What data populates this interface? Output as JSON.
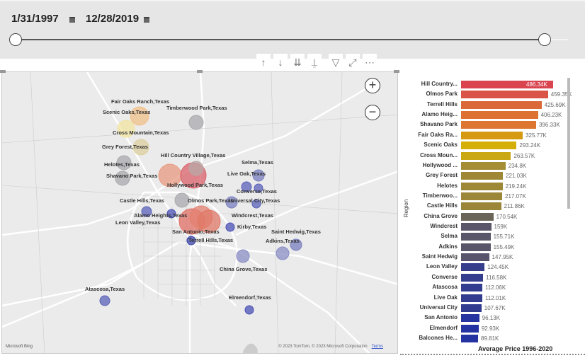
{
  "slicer": {
    "start_date": "1/31/1997",
    "end_date": "12/28/2019",
    "range_fraction": [
      0,
      1
    ]
  },
  "toolbar": {
    "icons": [
      "arrow-up-icon",
      "arrow-down-icon",
      "double-arrow-down-icon",
      "expand-hierarchy-icon",
      "filter-icon",
      "focus-mode-icon",
      "more-options-icon"
    ],
    "more": "⋯"
  },
  "map": {
    "labels": [
      "Fair Oaks Ranch,Texas",
      "Scenic Oaks,Texas",
      "Cross Mountain,Texas",
      "Grey Forest,Texas",
      "Timberwood Park,Texas",
      "Hill Country Village,Texas",
      "Helotes,Texas",
      "Shavano Park,Texas",
      "Hollywood Park,Texas",
      "Selma,Texas",
      "Live Oak,Texas",
      "Converse,Texas",
      "Universal City,Texas",
      "Castle Hills,Texas",
      "Olmos Park,Texas",
      "Alamo Heights,Texas",
      "Windcrest,Texas",
      "Leon Valley,Texas",
      "San Antonio,Texas",
      "Kirby,Texas",
      "Saint Hedwig,Texas",
      "Adkins,Texas",
      "Terrell Hills,Texas",
      "China Grove,Texas",
      "Atascosa,Texas",
      "Elmendorf,Texas"
    ],
    "zoom_in": "+",
    "zoom_out": "−",
    "attribution": "© 2023 TomTom, © 2023 Microsoft Corporation",
    "terms": "Terms",
    "logo": "Microsoft Bing"
  },
  "chart_data": {
    "type": "bar",
    "orientation": "horizontal",
    "ylabel": "Region",
    "xlabel": "Average Price 1996-2020",
    "categories": [
      "Hill Country...",
      "Olmos Park",
      "Terrell Hills",
      "Alamo Heig...",
      "Shavano Park",
      "Fair Oaks Ra...",
      "Scenic Oaks",
      "Cross Moun...",
      "Hollywood ...",
      "Grey Forest",
      "Helotes",
      "Timberwoo...",
      "Castle Hills",
      "China Grove",
      "Windcrest",
      "Selma",
      "Adkins",
      "Saint Hedwig",
      "Leon Valley",
      "Converse",
      "Atascosa",
      "Live Oak",
      "Universal City",
      "San Antonio",
      "Elmendorf",
      "Balcones He..."
    ],
    "values": [
      486340,
      459350,
      425690,
      406230,
      396330,
      325770,
      293240,
      263570,
      234800,
      221030,
      219240,
      217070,
      211860,
      170540,
      159000,
      155710,
      155490,
      147950,
      124450,
      116580,
      112060,
      112010,
      107670,
      96130,
      92930,
      89810
    ],
    "labels": [
      "486.34K",
      "459.35K",
      "425.69K",
      "406.23K",
      "396.33K",
      "325.77K",
      "293.24K",
      "263.57K",
      "234.8K",
      "221.03K",
      "219.24K",
      "217.07K",
      "211.86K",
      "170.54K",
      "159K",
      "155.71K",
      "155.49K",
      "147.95K",
      "124.45K",
      "116.58K",
      "112.06K",
      "112.01K",
      "107.67K",
      "96.13K",
      "92.93K",
      "89.81K"
    ],
    "colors": [
      "#d9444f",
      "#d95446",
      "#db6838",
      "#dc7132",
      "#dc7631",
      "#d59a12",
      "#d6ae08",
      "#caa813",
      "#a48d35",
      "#9e8836",
      "#9e8836",
      "#9c8738",
      "#9a8539",
      "#6b6458",
      "#5b566a",
      "#5a566a",
      "#5a566a",
      "#57546c",
      "#363e8c",
      "#353e8e",
      "#333d8f",
      "#333d8f",
      "#313b90",
      "#2634a0",
      "#2533a2",
      "#2533a2"
    ]
  }
}
